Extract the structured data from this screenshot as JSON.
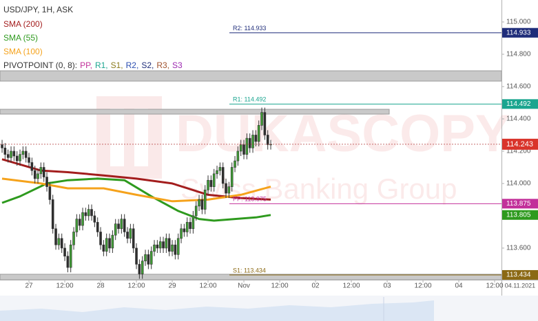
{
  "chart_data": {
    "type": "candlestick",
    "title": "USD/JPY, 1H, ASK",
    "x": [
      -9,
      -8,
      -7,
      -6,
      -5,
      -4,
      -3,
      -2,
      -1,
      0,
      1,
      2,
      3,
      4,
      5,
      6,
      7,
      8,
      9,
      10,
      11,
      12,
      13,
      14,
      15,
      16,
      17,
      18,
      19,
      20,
      21,
      22,
      23,
      24,
      25,
      26,
      27,
      28,
      29,
      30,
      31,
      32,
      33,
      34,
      35,
      36,
      37,
      38,
      39,
      40,
      41,
      42,
      43,
      44,
      45,
      46,
      47,
      48,
      49,
      50,
      51,
      52,
      53,
      54,
      55,
      56,
      57,
      58,
      59,
      60,
      61,
      62,
      63,
      64,
      65,
      66,
      67,
      68,
      69,
      70,
      71,
      72,
      73,
      74,
      75,
      76,
      77,
      78,
      79,
      80,
      81
    ],
    "open": [
      114.24,
      114.22,
      114.18,
      114.16,
      114.2,
      114.17,
      114.14,
      114.18,
      114.2,
      114.16,
      114.13,
      114.08,
      114.03,
      114.06,
      114.1,
      114.04,
      113.98,
      113.9,
      113.72,
      113.62,
      113.66,
      113.6,
      113.55,
      113.48,
      113.62,
      113.7,
      113.78,
      113.74,
      113.82,
      113.8,
      113.84,
      113.8,
      113.76,
      113.7,
      113.62,
      113.58,
      113.66,
      113.6,
      113.68,
      113.75,
      113.72,
      113.78,
      113.7,
      113.66,
      113.72,
      113.6,
      113.5,
      113.44,
      113.52,
      113.56,
      113.5,
      113.58,
      113.62,
      113.6,
      113.64,
      113.6,
      113.66,
      113.58,
      113.62,
      113.56,
      113.66,
      113.72,
      113.7,
      113.76,
      113.72,
      113.8,
      113.86,
      113.9,
      113.84,
      113.96,
      114.02,
      113.98,
      114.06,
      114.08,
      114.1,
      114,
      113.94,
      113.98,
      114.1,
      114.14,
      114.2,
      114.24,
      114.18,
      114.28,
      114.22,
      114.3,
      114.26,
      114.36,
      114.44,
      114.3,
      114.24
    ],
    "high": [
      114.27,
      114.25,
      114.21,
      114.23,
      114.23,
      114.2,
      114.21,
      114.23,
      114.23,
      114.19,
      114.16,
      114.11,
      114.09,
      114.13,
      114.13,
      114.07,
      114.01,
      113.93,
      113.75,
      113.69,
      113.69,
      113.63,
      113.58,
      113.65,
      113.73,
      113.81,
      113.81,
      113.85,
      113.85,
      113.87,
      113.87,
      113.83,
      113.79,
      113.73,
      113.65,
      113.69,
      113.69,
      113.71,
      113.78,
      113.78,
      113.81,
      113.81,
      113.73,
      113.75,
      113.75,
      113.63,
      113.53,
      113.55,
      113.59,
      113.59,
      113.61,
      113.65,
      113.65,
      113.67,
      113.67,
      113.69,
      113.69,
      113.65,
      113.65,
      113.69,
      113.75,
      113.75,
      113.79,
      113.79,
      113.83,
      113.89,
      113.93,
      113.93,
      113.99,
      114.05,
      114.05,
      114.09,
      114.11,
      114.13,
      114.13,
      114.03,
      114.01,
      114.13,
      114.17,
      114.23,
      114.27,
      114.27,
      114.31,
      114.31,
      114.33,
      114.33,
      114.39,
      114.47,
      114.47,
      114.33,
      114.27
    ],
    "low": [
      114.19,
      114.15,
      114.13,
      114.13,
      114.14,
      114.11,
      114.11,
      114.15,
      114.13,
      114.1,
      114.05,
      114,
      114,
      114.03,
      114.01,
      113.95,
      113.87,
      113.69,
      113.59,
      113.59,
      113.57,
      113.52,
      113.45,
      113.45,
      113.59,
      113.67,
      113.71,
      113.71,
      113.77,
      113.77,
      113.77,
      113.73,
      113.67,
      113.59,
      113.55,
      113.55,
      113.57,
      113.57,
      113.65,
      113.69,
      113.69,
      113.67,
      113.63,
      113.63,
      113.57,
      113.47,
      113.41,
      113.41,
      113.49,
      113.47,
      113.47,
      113.55,
      113.57,
      113.57,
      113.57,
      113.57,
      113.55,
      113.55,
      113.53,
      113.53,
      113.63,
      113.67,
      113.67,
      113.69,
      113.69,
      113.77,
      113.83,
      113.81,
      113.81,
      113.93,
      113.95,
      113.95,
      114.03,
      114.05,
      113.97,
      113.91,
      113.91,
      113.95,
      114.07,
      114.11,
      114.17,
      114.15,
      114.15,
      114.19,
      114.19,
      114.23,
      114.23,
      114.33,
      114.27,
      114.21,
      114.21
    ],
    "close": [
      114.22,
      114.18,
      114.16,
      114.2,
      114.17,
      114.14,
      114.18,
      114.2,
      114.16,
      114.13,
      114.08,
      114.03,
      114.06,
      114.1,
      114.04,
      113.98,
      113.9,
      113.72,
      113.62,
      113.66,
      113.6,
      113.55,
      113.48,
      113.62,
      113.7,
      113.78,
      113.74,
      113.82,
      113.8,
      113.84,
      113.8,
      113.76,
      113.7,
      113.62,
      113.58,
      113.66,
      113.6,
      113.68,
      113.75,
      113.72,
      113.78,
      113.7,
      113.66,
      113.72,
      113.6,
      113.5,
      113.44,
      113.52,
      113.56,
      113.5,
      113.58,
      113.62,
      113.6,
      113.64,
      113.6,
      113.66,
      113.58,
      113.62,
      113.56,
      113.66,
      113.72,
      113.7,
      113.76,
      113.72,
      113.8,
      113.86,
      113.9,
      113.84,
      113.96,
      114.02,
      113.98,
      114.06,
      114.08,
      114.1,
      114,
      113.94,
      113.98,
      114.1,
      114.14,
      114.2,
      114.24,
      114.18,
      114.28,
      114.22,
      114.3,
      114.26,
      114.36,
      114.44,
      114.3,
      114.24,
      114.243
    ],
    "up_color": "#3f9c35",
    "down_color": "#2e2e2e",
    "current_price_color": "#d9342b",
    "sma": [
      {
        "name": "SMA (200)",
        "color": "#a31d1d",
        "x": [
          -9,
          4,
          13,
          25,
          36,
          48,
          60,
          71,
          81
        ],
        "values": [
          114.15,
          114.08,
          114.07,
          114.05,
          114.03,
          114.0,
          113.93,
          113.91,
          113.9
        ]
      },
      {
        "name": "SMA (55)",
        "color": "#2e9a1e",
        "x": [
          -9,
          -3,
          6,
          13,
          23,
          32,
          41,
          50,
          57,
          62,
          69,
          76,
          81
        ],
        "values": [
          113.88,
          113.92,
          114.0,
          114.02,
          114.03,
          114.02,
          113.92,
          113.83,
          113.78,
          113.77,
          113.78,
          113.79,
          113.805
        ]
      },
      {
        "name": "SMA (100)",
        "color": "#f5a21b",
        "x": [
          -9,
          4,
          13,
          25,
          36,
          48,
          60,
          71,
          81
        ],
        "values": [
          114.03,
          114.0,
          113.97,
          113.97,
          113.93,
          113.89,
          113.9,
          113.93,
          113.98
        ]
      }
    ],
    "pivot_legend": {
      "label": "PIVOTPOINT (0, 8):",
      "items": [
        {
          "text": "PP,",
          "color": "#c2309a"
        },
        {
          "text": "R1,",
          "color": "#1aa58f"
        },
        {
          "text": "S1,",
          "color": "#8b7a1a"
        },
        {
          "text": "R2,",
          "color": "#2a4db0"
        },
        {
          "text": "S2,",
          "color": "#1f2d7a"
        },
        {
          "text": "R3,",
          "color": "#a0522d"
        },
        {
          "text": "S3",
          "color": "#9c27b0"
        }
      ]
    },
    "pivots": [
      {
        "label": "R2: 114.933",
        "value": 114.933,
        "color": "#1f2d7a"
      },
      {
        "label": "R1: 114.492",
        "value": 114.492,
        "color": "#1aa58f"
      },
      {
        "label": "PP: 113.875",
        "value": 113.875,
        "color": "#c2309a"
      },
      {
        "label": "S1: 113.434",
        "value": 113.434,
        "color": "#8b6914"
      }
    ],
    "xlim": [
      -9.7,
      158.3
    ],
    "xticks": [
      {
        "value": 0,
        "label": "27"
      },
      {
        "value": 12,
        "label": "12:00"
      },
      {
        "value": 24,
        "label": "28"
      },
      {
        "value": 36,
        "label": "12:00"
      },
      {
        "value": 48,
        "label": "29"
      },
      {
        "value": 60,
        "label": "12:00"
      },
      {
        "value": 72,
        "label": "Nov"
      },
      {
        "value": 84,
        "label": "12:00"
      },
      {
        "value": 96,
        "label": "02"
      },
      {
        "value": 108,
        "label": "12:00"
      },
      {
        "value": 120,
        "label": "03"
      },
      {
        "value": 132,
        "label": "12:00"
      },
      {
        "value": 144,
        "label": "04"
      },
      {
        "value": 156,
        "label": "12:00"
      }
    ],
    "date_label": "04.11.2021",
    "ylim": [
      113.404,
      115.136
    ],
    "yticks": [
      {
        "value": 115,
        "label": "115.000"
      },
      {
        "value": 114.8,
        "label": "114.800"
      },
      {
        "value": 114.6,
        "label": "114.600"
      },
      {
        "value": 114.4,
        "label": "114.400"
      },
      {
        "value": 114.2,
        "label": "114.200"
      },
      {
        "value": 114,
        "label": "114.000"
      },
      {
        "value": 113.6,
        "label": "113.600"
      }
    ],
    "watermark": {
      "brand": "DUKASCOPY",
      "tagline": "Swiss Banking Group"
    }
  }
}
